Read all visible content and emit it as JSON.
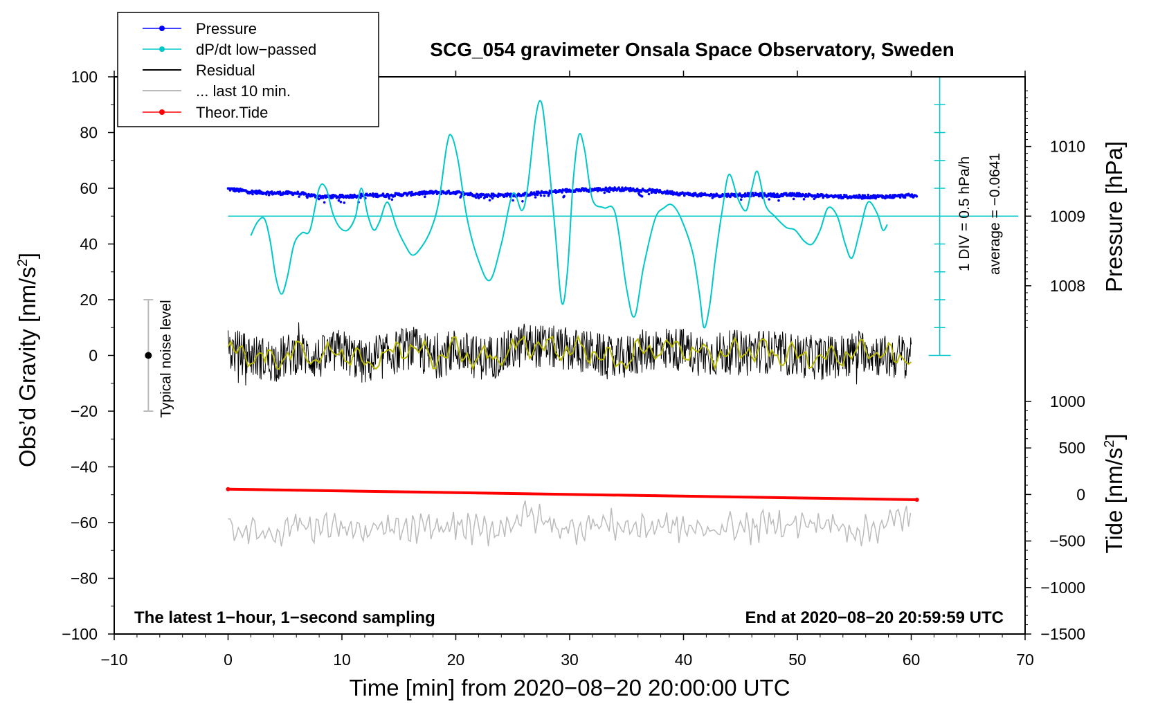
{
  "chart_data": {
    "type": "line",
    "title": "SCG_054 gravimeter Onsala Space Observatory, Sweden",
    "xlabel": "Time [min] from 2020−08−20 20:00:00 UTC",
    "ylabel_left": "Obs’d Gravity [nm/s",
    "ylabel_left_sup": "2",
    "ylabel_left_close": "]",
    "ylabel_pressure": "Pressure [hPa]",
    "ylabel_tide": "Tide [nm/s",
    "ylabel_tide_sup": "2",
    "ylabel_tide_close": "]",
    "xlim": [
      -10,
      70
    ],
    "ylim": [
      -100,
      100
    ],
    "x_ticks": [
      "−10",
      "0",
      "10",
      "20",
      "30",
      "40",
      "50",
      "60",
      "70"
    ],
    "x_tick_values": [
      -10,
      0,
      10,
      20,
      30,
      40,
      50,
      60,
      70
    ],
    "y_ticks": [
      "100",
      "80",
      "60",
      "40",
      "20",
      "0",
      "−20",
      "−40",
      "−60",
      "−80",
      "−100"
    ],
    "y_tick_values": [
      100,
      80,
      60,
      40,
      20,
      0,
      -20,
      -40,
      -60,
      -80,
      -100
    ],
    "pressure_ticks": [
      "1010",
      "1009",
      "1008"
    ],
    "pressure_tick_values": [
      1010,
      1009,
      1008
    ],
    "pressure_axis": {
      "hpa_at_gravity_50": 1009,
      "hpa_per_25_gravity": 1
    },
    "tide_ticks": [
      "1000",
      "500",
      "0",
      "−500",
      "−1000",
      "−1500"
    ],
    "tide_tick_values": [
      1000,
      500,
      0,
      -500,
      -1000,
      -1500
    ],
    "tide_axis": {
      "min": -1500,
      "max": 1000
    },
    "legend": [
      {
        "label": "Pressure",
        "color": "#0000ff",
        "style": "line-dot"
      },
      {
        "label": "dP/dt low−passed",
        "color": "#00c8c8",
        "style": "line-dot"
      },
      {
        "label": "Residual",
        "color": "#000000",
        "style": "line"
      },
      {
        "label": "... last 10 min.",
        "color": "#bbbbbb",
        "style": "line"
      },
      {
        "label": "Theor.Tide",
        "color": "#ff0000",
        "style": "line-dot"
      }
    ],
    "noise_label": "Typical noise level",
    "noise_bar": {
      "x": -7,
      "ymin": -20,
      "ymax": 20,
      "center": 0
    },
    "dpdt_scale_label": "1 DIV = 0.5 hPa/h",
    "dpdt_average_label": "average = −0.0641",
    "dpdt_scale_axis": {
      "x": 62.5,
      "ymin": 0,
      "ymax": 100,
      "zero_line_y": 50
    },
    "note_left": "The latest 1−hour, 1−second sampling",
    "note_right": "End at 2020−08−20 20:59:59 UTC",
    "series": [
      {
        "name": "Pressure",
        "color": "#0000ff",
        "unit": "hPa",
        "x": [
          0,
          2,
          4,
          6,
          8,
          10,
          12,
          14,
          16,
          18,
          20,
          22,
          24,
          26,
          28,
          30,
          32,
          34,
          36,
          38,
          40,
          42,
          44,
          46,
          48,
          50,
          52,
          54,
          56,
          58,
          60.5
        ],
        "y": [
          1009.39,
          1009.35,
          1009.33,
          1009.33,
          1009.28,
          1009.28,
          1009.3,
          1009.3,
          1009.32,
          1009.34,
          1009.34,
          1009.3,
          1009.3,
          1009.31,
          1009.34,
          1009.37,
          1009.38,
          1009.39,
          1009.38,
          1009.35,
          1009.32,
          1009.3,
          1009.3,
          1009.31,
          1009.3,
          1009.31,
          1009.29,
          1009.28,
          1009.28,
          1009.28,
          1009.3
        ]
      },
      {
        "name": "dP/dt low−passed",
        "color": "#00c8c8",
        "unit": "gravity-axis",
        "x": [
          2,
          2.6,
          3.2,
          3.7,
          4.2,
          4.7,
          5.2,
          5.8,
          6.5,
          7.2,
          8.0,
          8.6,
          9.2,
          9.8,
          10.5,
          11.2,
          11.7,
          12.3,
          12.8,
          13.3,
          14.0,
          14.8,
          15.5,
          16.2,
          17.0,
          17.8,
          18.5,
          19.2,
          19.6,
          20.2,
          21.0,
          22.0,
          23.0,
          24.0,
          25.0,
          25.8,
          26.3,
          27.0,
          27.5,
          28.0,
          28.7,
          29.3,
          29.8,
          30.3,
          30.8,
          31.3,
          32.0,
          33.0,
          34.0,
          35.0,
          35.7,
          36.5,
          37.5,
          38.3,
          39.0,
          39.8,
          40.8,
          41.4,
          41.8,
          42.3,
          42.8,
          43.4,
          44.0,
          44.8,
          45.5,
          46.0,
          46.5,
          47.2,
          48.0,
          49.0,
          49.8,
          50.6,
          51.3,
          52.0,
          52.7,
          53.5,
          54.2,
          54.8,
          55.5,
          56.2,
          57.0,
          57.5,
          57.9
        ],
        "y": [
          43,
          48,
          49,
          41,
          28,
          22,
          28,
          40,
          44,
          45,
          60,
          60,
          51,
          46,
          45,
          50,
          60,
          50,
          45,
          48,
          55,
          46,
          40,
          36,
          39,
          45,
          55,
          75,
          79,
          70,
          49,
          34,
          27,
          40,
          58,
          52,
          60,
          85,
          91,
          76,
          46,
          19,
          30,
          62,
          79,
          74,
          56,
          53,
          51,
          24,
          14,
          32,
          49,
          53,
          54,
          49,
          37,
          22,
          10,
          18,
          35,
          52,
          65,
          56,
          52,
          60,
          66,
          54,
          50,
          46,
          45,
          41,
          40,
          45,
          53,
          50,
          40,
          35,
          45,
          55,
          51,
          45,
          47
        ]
      },
      {
        "name": "Residual",
        "color": "#000000",
        "unit": "nm/s2",
        "x": [
          0,
          2,
          4,
          6,
          8,
          10,
          12,
          14,
          16,
          18,
          20,
          22,
          24,
          26,
          28,
          30,
          32,
          34,
          36,
          38,
          40,
          42,
          44,
          46,
          48,
          50,
          52,
          54,
          56,
          58,
          60
        ],
        "y": [
          2,
          0,
          -2,
          1,
          -1,
          2,
          -3,
          0,
          3,
          -1,
          2,
          -1,
          0,
          4,
          3,
          2,
          1,
          -2,
          1,
          3,
          2,
          0,
          1,
          2,
          1,
          0,
          -1,
          0,
          2,
          -1,
          1
        ]
      },
      {
        "name": "Residual smoothed",
        "color": "#b8b800",
        "unit": "nm/s2",
        "x": [
          0,
          2,
          4,
          6,
          8,
          10,
          12,
          14,
          16,
          18,
          20,
          22,
          24,
          26,
          28,
          30,
          32,
          34,
          36,
          38,
          40,
          42,
          44,
          46,
          48,
          50,
          52,
          54,
          56,
          58,
          60
        ],
        "y": [
          2,
          0,
          -2,
          1,
          -1,
          2,
          -3,
          0,
          3,
          -1,
          2,
          -1,
          0,
          4,
          3,
          2,
          1,
          -2,
          1,
          3,
          2,
          0,
          1,
          2,
          1,
          0,
          -1,
          0,
          2,
          -1,
          1
        ]
      },
      {
        "name": "... last 10 min.",
        "color": "#bbbbbb",
        "unit": "nm/s2",
        "x": [
          0,
          2,
          4,
          6,
          8,
          10,
          12,
          14,
          16,
          18,
          20,
          22,
          24,
          26,
          28,
          30,
          32,
          34,
          36,
          38,
          40,
          42,
          44,
          46,
          48,
          50,
          52,
          54,
          56,
          58,
          60
        ],
        "y": [
          -62,
          -63,
          -64,
          -60,
          -62,
          -61,
          -64,
          -62,
          -63,
          -62,
          -61,
          -63,
          -62,
          -57,
          -60,
          -63,
          -60,
          -61,
          -62,
          -61,
          -62,
          -63,
          -61,
          -62,
          -60,
          -61,
          -60,
          -62,
          -63,
          -60,
          -57
        ]
      },
      {
        "name": "Theor.Tide",
        "color": "#ff0000",
        "unit": "nm/s2",
        "x": [
          0,
          60.5
        ],
        "y": [
          -48,
          -51.8
        ]
      }
    ]
  }
}
